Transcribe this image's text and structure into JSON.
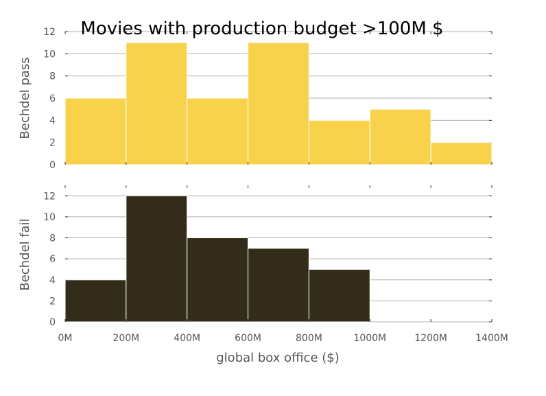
{
  "chart_data": {
    "type": "bar",
    "title": "Movies with production budget >100M $",
    "xlabel": "global box office ($)",
    "x_tick_labels": [
      "0M",
      "200M",
      "400M",
      "600M",
      "800M",
      "1000M",
      "1200M",
      "1400M"
    ],
    "xlim": [
      0,
      1400
    ],
    "bin_edges": [
      0,
      200,
      400,
      600,
      800,
      1000,
      1200,
      1400
    ],
    "grid": "horizontal",
    "panels": [
      {
        "ylabel": "Bechdel pass",
        "color": "#f8d24b",
        "ylim": [
          0,
          12
        ],
        "y_ticks": [
          "0",
          "2",
          "4",
          "6",
          "8",
          "10",
          "12"
        ],
        "values": [
          6,
          11,
          6,
          11,
          4,
          5,
          2
        ]
      },
      {
        "ylabel": "Bechdel fail",
        "color": "#332c1a",
        "ylim": [
          0,
          13
        ],
        "y_ticks": [
          "0",
          "2",
          "4",
          "6",
          "8",
          "10",
          "12"
        ],
        "values": [
          4,
          12,
          8,
          7,
          5,
          0,
          0
        ]
      }
    ]
  }
}
